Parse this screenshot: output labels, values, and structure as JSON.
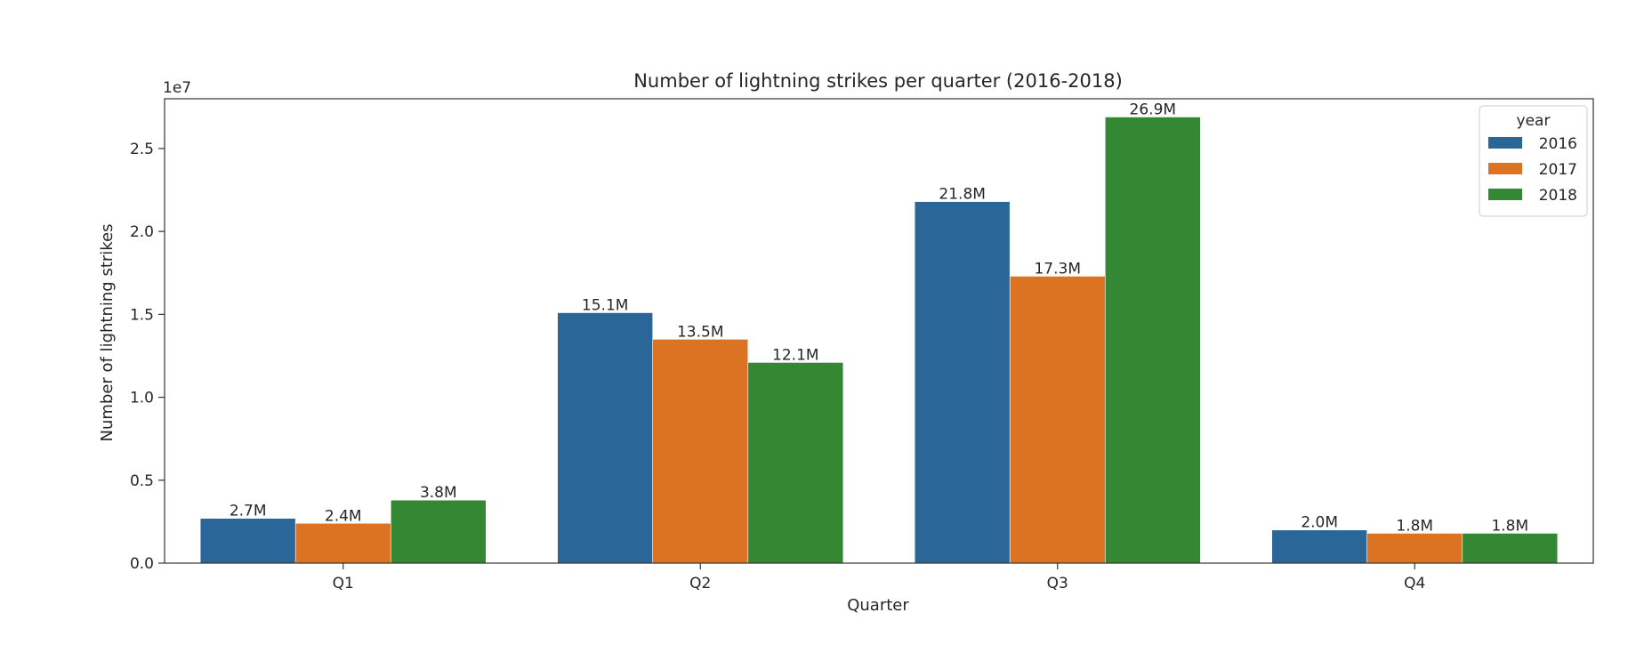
{
  "chart_data": {
    "type": "bar",
    "title": "Number of lightning strikes per quarter (2016-2018)",
    "xlabel": "Quarter",
    "ylabel": "Number of lightning strikes",
    "offset_text": "1e7",
    "categories": [
      "Q1",
      "Q2",
      "Q3",
      "Q4"
    ],
    "ylim": [
      0,
      28000000
    ],
    "yticks": [
      0,
      5000000,
      10000000,
      15000000,
      20000000,
      25000000
    ],
    "ytick_labels": [
      "0.0",
      "0.5",
      "1.0",
      "1.5",
      "2.0",
      "2.5"
    ],
    "legend": {
      "title": "year",
      "position": "top-right"
    },
    "grid": false,
    "series": [
      {
        "name": "2016",
        "color": "#2b6699",
        "values": [
          2700000,
          15100000,
          21800000,
          2000000
        ],
        "labels": [
          "2.7M",
          "15.1M",
          "21.8M",
          "2.0M"
        ]
      },
      {
        "name": "2017",
        "color": "#dc7322",
        "values": [
          2400000,
          13500000,
          17300000,
          1800000
        ],
        "labels": [
          "2.4M",
          "13.5M",
          "17.3M",
          "1.8M"
        ]
      },
      {
        "name": "2018",
        "color": "#358833",
        "values": [
          3800000,
          12100000,
          26900000,
          1800000
        ],
        "labels": [
          "3.8M",
          "12.1M",
          "26.9M",
          "1.8M"
        ]
      }
    ]
  }
}
